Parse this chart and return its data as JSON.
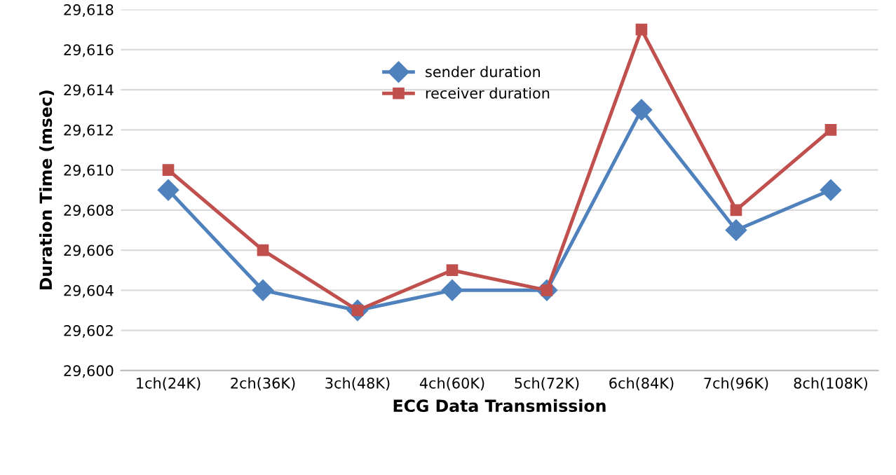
{
  "chart_data": {
    "type": "line",
    "xlabel": "ECG Data Transmission",
    "ylabel": "Duration Time (msec)",
    "categories": [
      "1ch(24K)",
      "2ch(36K)",
      "3ch(48K)",
      "4ch(60K)",
      "5ch(72K)",
      "6ch(84K)",
      "7ch(96K)",
      "8ch(108K)"
    ],
    "series": [
      {
        "name": "sender duration",
        "color": "#4f81bd",
        "marker": "diamond",
        "values": [
          29609,
          29604,
          29603,
          29604,
          29604,
          29613,
          29607,
          29609
        ]
      },
      {
        "name": "receiver duration",
        "color": "#c0504d",
        "marker": "square",
        "values": [
          29610,
          29606,
          29603,
          29605,
          29604,
          29617,
          29608,
          29612
        ]
      }
    ],
    "ylim": [
      29600,
      29618
    ],
    "yticks": [
      {
        "value": 29600,
        "label": "29,600"
      },
      {
        "value": 29602,
        "label": "29,602"
      },
      {
        "value": 29604,
        "label": "29,604"
      },
      {
        "value": 29606,
        "label": "29,606"
      },
      {
        "value": 29608,
        "label": "29,608"
      },
      {
        "value": 29610,
        "label": "29,610"
      },
      {
        "value": 29612,
        "label": "29,612"
      },
      {
        "value": 29614,
        "label": "29,614"
      },
      {
        "value": 29616,
        "label": "29,616"
      },
      {
        "value": 29618,
        "label": "29,618"
      }
    ],
    "grid": "y",
    "legend": "top center",
    "line_style": "solid"
  }
}
